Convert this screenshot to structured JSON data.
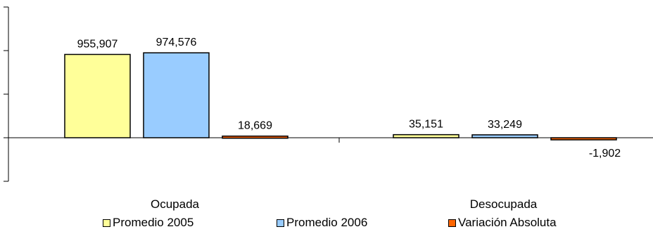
{
  "chart_data": {
    "type": "bar",
    "categories": [
      "Ocupada",
      "Desocupada"
    ],
    "series": [
      {
        "name": "Promedio 2005",
        "values": [
          955907,
          35151
        ],
        "labels": [
          "955,907",
          "35,151"
        ],
        "color": "#FFFF99"
      },
      {
        "name": "Promedio 2006",
        "values": [
          974576,
          33249
        ],
        "labels": [
          "974,576",
          "33,249"
        ],
        "color": "#99CCFF"
      },
      {
        "name": "Variación Absoluta",
        "values": [
          18669,
          -1902
        ],
        "labels": [
          "18,669",
          "-1,902"
        ],
        "color": "#FF6600"
      }
    ],
    "ylim": [
      -500000,
      1500000
    ],
    "yticks": [
      -500000,
      0,
      500000,
      1000000,
      1500000
    ],
    "grid": false,
    "legend_position": "bottom"
  }
}
